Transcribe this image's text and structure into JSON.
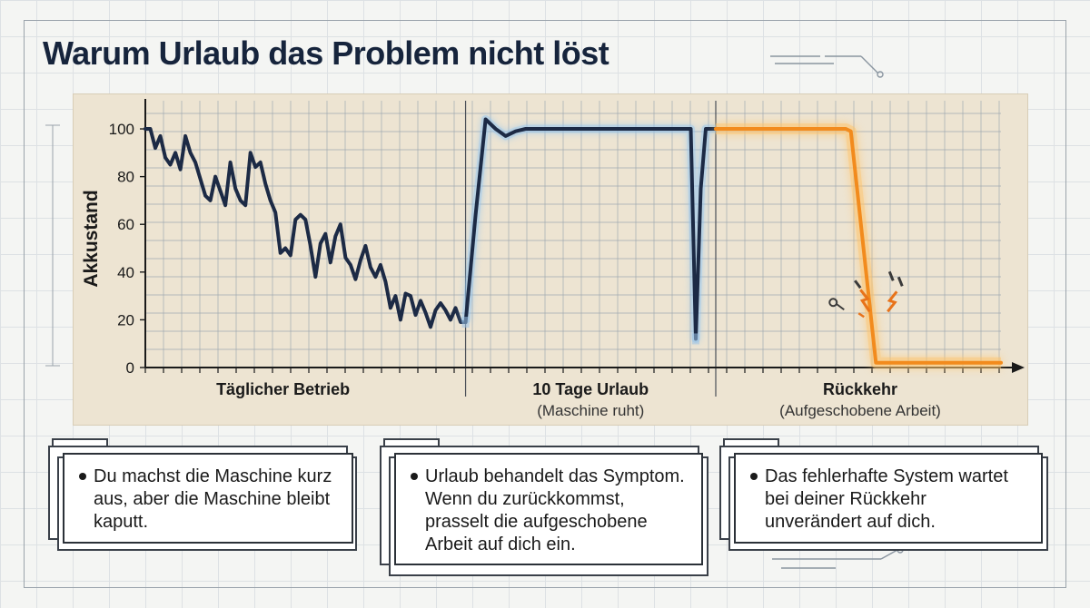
{
  "title": "Warum Urlaub das Problem nicht löst",
  "chart_data": {
    "type": "line",
    "ylabel": "Akkustand",
    "ylim": [
      0,
      108
    ],
    "yticks": [
      0,
      20,
      40,
      60,
      80,
      100
    ],
    "grid": true,
    "phases": [
      {
        "label": "Täglicher Betrieb",
        "sublabel": "",
        "x_range": [
          0,
          64
        ]
      },
      {
        "label": "10 Tage Urlaub",
        "sublabel": "(Maschine ruht)",
        "x_range": [
          64,
          114
        ]
      },
      {
        "label": "Rückkehr",
        "sublabel": "(Aufgeschobene Arbeit)",
        "x_range": [
          114,
          171
        ]
      }
    ],
    "series": [
      {
        "color": "#1c2a45",
        "points": [
          [
            0,
            100
          ],
          [
            1,
            100
          ],
          [
            2,
            92
          ],
          [
            3,
            97
          ],
          [
            4,
            88
          ],
          [
            5,
            85
          ],
          [
            6,
            90
          ],
          [
            7,
            83
          ],
          [
            8,
            97
          ],
          [
            9,
            90
          ],
          [
            10,
            86
          ],
          [
            11,
            79
          ],
          [
            12,
            72
          ],
          [
            13,
            70
          ],
          [
            14,
            80
          ],
          [
            15,
            74
          ],
          [
            16,
            68
          ],
          [
            17,
            86
          ],
          [
            18,
            75
          ],
          [
            19,
            70
          ],
          [
            20,
            68
          ],
          [
            21,
            90
          ],
          [
            22,
            84
          ],
          [
            23,
            86
          ],
          [
            24,
            77
          ],
          [
            25,
            70
          ],
          [
            26,
            65
          ],
          [
            27,
            48
          ],
          [
            28,
            50
          ],
          [
            29,
            47
          ],
          [
            30,
            62
          ],
          [
            31,
            64
          ],
          [
            32,
            62
          ],
          [
            33,
            51
          ],
          [
            34,
            38
          ],
          [
            35,
            52
          ],
          [
            36,
            56
          ],
          [
            37,
            44
          ],
          [
            38,
            55
          ],
          [
            39,
            60
          ],
          [
            40,
            46
          ],
          [
            41,
            43
          ],
          [
            42,
            37
          ],
          [
            43,
            45
          ],
          [
            44,
            51
          ],
          [
            45,
            42
          ],
          [
            46,
            38
          ],
          [
            47,
            43
          ],
          [
            48,
            36
          ],
          [
            49,
            25
          ],
          [
            50,
            30
          ],
          [
            51,
            20
          ],
          [
            52,
            31
          ],
          [
            53,
            30
          ],
          [
            54,
            22
          ],
          [
            55,
            28
          ],
          [
            56,
            23
          ],
          [
            57,
            17
          ],
          [
            58,
            24
          ],
          [
            59,
            27
          ],
          [
            60,
            24
          ],
          [
            61,
            20
          ],
          [
            62,
            25
          ],
          [
            63,
            19
          ],
          [
            64,
            19
          ]
        ]
      },
      {
        "color": "#1c2a45",
        "points": [
          [
            64,
            19
          ],
          [
            66,
            64
          ],
          [
            68,
            104
          ],
          [
            70,
            100
          ],
          [
            72,
            97
          ],
          [
            74,
            99
          ],
          [
            76,
            100
          ],
          [
            90,
            100
          ],
          [
            109,
            100
          ],
          [
            110,
            12
          ],
          [
            111,
            75
          ],
          [
            112,
            100
          ],
          [
            113,
            100
          ],
          [
            114,
            100
          ]
        ]
      },
      {
        "color": "#f28b1d",
        "points": [
          [
            114,
            100
          ],
          [
            140,
            100
          ],
          [
            141,
            99
          ],
          [
            146,
            2
          ],
          [
            148,
            2
          ],
          [
            171,
            2
          ]
        ]
      }
    ],
    "annotations": [
      {
        "type": "marker",
        "x": 64,
        "y": 19
      },
      {
        "type": "marker",
        "x": 110,
        "y": 12
      },
      {
        "type": "sparks",
        "x": 144,
        "y": 25
      }
    ]
  },
  "callouts": [
    {
      "text": "Du machst die Maschine kurz aus, aber die Maschine bleibt kaputt."
    },
    {
      "text": "Urlaub behandelt das Symptom. Wenn du zurückkommst, prasselt die aufgeschobene Arbeit auf dich ein."
    },
    {
      "text": "Das fehlerhafte System wartet bei deiner Rückkehr unverändert auf dich."
    }
  ]
}
